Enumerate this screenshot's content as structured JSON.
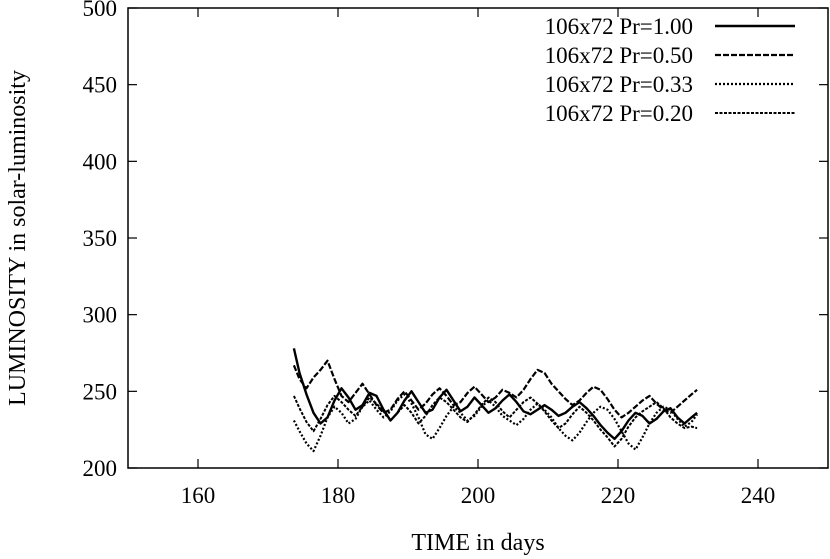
{
  "chart_data": {
    "type": "line",
    "xlabel": "TIME in days",
    "ylabel": "LUMINOSITY in solar-luminosity",
    "xlim": [
      150,
      250
    ],
    "ylim": [
      200,
      500
    ],
    "xticks": [
      "160",
      "180",
      "200",
      "220",
      "240"
    ],
    "yticks": [
      "200",
      "250",
      "300",
      "350",
      "400",
      "450",
      "500"
    ],
    "grid": false,
    "legend_position": "top-right",
    "series": [
      {
        "name": "106x72  Pr=1.00",
        "style": "solid",
        "x": [
          173.7,
          174.5,
          175.5,
          176.5,
          177.5,
          178.5,
          179.5,
          180.5,
          181.5,
          182.5,
          183.5,
          184.5,
          185.5,
          186.5,
          187.5,
          188.5,
          189.5,
          190.5,
          191.5,
          192.5,
          193.5,
          194.5,
          195.5,
          196.5,
          197.5,
          198.5,
          199.5,
          200.5,
          201.5,
          202.5,
          203.5,
          204.5,
          205.5,
          206.5,
          207.5,
          208.5,
          209.5,
          210.5,
          211.5,
          212.5,
          213.5,
          214.5,
          215.5,
          216.5,
          217.5,
          218.5,
          219.5,
          220.5,
          221.5,
          222.5,
          223.5,
          224.5,
          225.5,
          226.5,
          227.5,
          228.5,
          229.5,
          230.5,
          231.3
        ],
        "y": [
          278,
          262,
          248,
          236,
          229,
          233,
          244,
          252,
          246,
          238,
          241,
          249,
          247,
          238,
          231,
          236,
          244,
          250,
          243,
          236,
          238,
          246,
          251,
          244,
          237,
          240,
          246,
          241,
          236,
          239,
          244,
          248,
          243,
          237,
          235,
          238,
          241,
          238,
          234,
          236,
          240,
          243,
          239,
          234,
          228,
          223,
          219,
          224,
          231,
          236,
          234,
          229,
          232,
          237,
          239,
          233,
          229,
          233,
          236
        ]
      },
      {
        "name": "106x72  Pr=0.50",
        "style": "dashed",
        "x": [
          173.7,
          174.5,
          175.5,
          176.5,
          177.5,
          178.5,
          179.5,
          180.5,
          181.5,
          182.5,
          183.5,
          184.5,
          185.5,
          186.5,
          187.5,
          188.5,
          189.5,
          190.5,
          191.5,
          192.5,
          193.5,
          194.5,
          195.5,
          196.5,
          197.5,
          198.5,
          199.5,
          200.5,
          201.5,
          202.5,
          203.5,
          204.5,
          205.5,
          206.5,
          207.5,
          208.5,
          209.5,
          210.5,
          211.5,
          212.5,
          213.5,
          214.5,
          215.5,
          216.5,
          217.5,
          218.5,
          219.5,
          220.5,
          221.5,
          222.5,
          223.5,
          224.5,
          225.5,
          226.5,
          227.5,
          228.5,
          229.5,
          230.5,
          231.3
        ],
        "y": [
          267,
          258,
          252,
          259,
          264,
          270,
          258,
          247,
          243,
          249,
          255,
          248,
          241,
          236,
          238,
          245,
          250,
          244,
          238,
          242,
          248,
          252,
          247,
          241,
          243,
          249,
          253,
          248,
          243,
          246,
          251,
          249,
          246,
          251,
          258,
          264,
          262,
          255,
          250,
          245,
          241,
          244,
          249,
          253,
          251,
          245,
          238,
          233,
          236,
          240,
          244,
          247,
          242,
          238,
          236,
          240,
          244,
          248,
          251
        ]
      },
      {
        "name": "106x72  Pr=0.33",
        "style": "dotted",
        "x": [
          173.7,
          174.5,
          175.5,
          176.5,
          177.5,
          178.5,
          179.5,
          180.5,
          181.5,
          182.5,
          183.5,
          184.5,
          185.5,
          186.5,
          187.5,
          188.5,
          189.5,
          190.5,
          191.5,
          192.5,
          193.5,
          194.5,
          195.5,
          196.5,
          197.5,
          198.5,
          199.5,
          200.5,
          201.5,
          202.5,
          203.5,
          204.5,
          205.5,
          206.5,
          207.5,
          208.5,
          209.5,
          210.5,
          211.5,
          212.5,
          213.5,
          214.5,
          215.5,
          216.5,
          217.5,
          218.5,
          219.5,
          220.5,
          221.5,
          222.5,
          223.5,
          224.5,
          225.5,
          226.5,
          227.5,
          228.5,
          229.5,
          230.5,
          231.3
        ],
        "y": [
          231,
          224,
          216,
          211,
          221,
          233,
          240,
          236,
          229,
          232,
          240,
          244,
          238,
          233,
          237,
          244,
          248,
          242,
          233,
          222,
          219,
          226,
          234,
          240,
          236,
          231,
          234,
          240,
          244,
          240,
          234,
          231,
          228,
          232,
          238,
          242,
          238,
          233,
          226,
          221,
          218,
          223,
          230,
          236,
          240,
          238,
          232,
          224,
          216,
          212,
          220,
          229,
          236,
          240,
          238,
          232,
          227,
          230,
          235
        ]
      },
      {
        "name": "106x72  Pr=0.20",
        "style": "dashdot",
        "x": [
          173.7,
          174.5,
          175.5,
          176.5,
          177.5,
          178.5,
          179.5,
          180.5,
          181.5,
          182.5,
          183.5,
          184.5,
          185.5,
          186.5,
          187.5,
          188.5,
          189.5,
          190.5,
          191.5,
          192.5,
          193.5,
          194.5,
          195.5,
          196.5,
          197.5,
          198.5,
          199.5,
          200.5,
          201.5,
          202.5,
          203.5,
          204.5,
          205.5,
          206.5,
          207.5,
          208.5,
          209.5,
          210.5,
          211.5,
          212.5,
          213.5,
          214.5,
          215.5,
          216.5,
          217.5,
          218.5,
          219.5,
          220.5,
          221.5,
          222.5,
          223.5,
          224.5,
          225.5,
          226.5,
          227.5,
          228.5,
          229.5,
          230.5,
          231.3
        ],
        "y": [
          247,
          239,
          230,
          224,
          232,
          241,
          247,
          243,
          238,
          234,
          240,
          246,
          242,
          237,
          231,
          236,
          241,
          236,
          229,
          234,
          241,
          246,
          243,
          238,
          233,
          230,
          235,
          241,
          246,
          243,
          237,
          233,
          238,
          243,
          246,
          242,
          237,
          231,
          226,
          229,
          235,
          240,
          236,
          231,
          225,
          220,
          214,
          219,
          227,
          233,
          237,
          240,
          243,
          239,
          233,
          229,
          226,
          227,
          226
        ]
      }
    ]
  }
}
